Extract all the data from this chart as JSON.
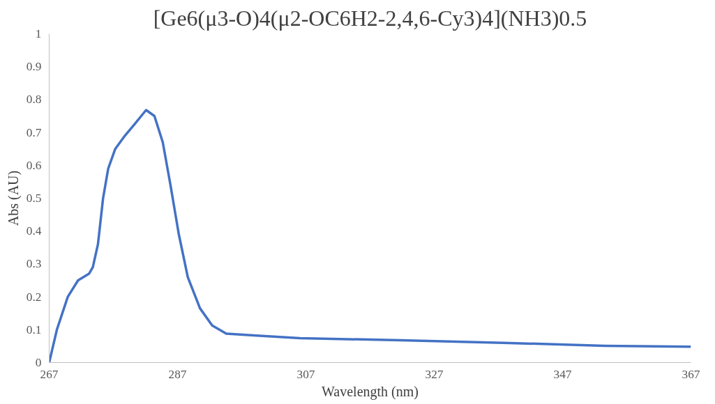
{
  "chart_data": {
    "type": "line",
    "title": "[Ge6(μ3-O)4(μ2-OC6H2-2,4,6-Cy3)4](NH3)0.5",
    "xlabel": "Wavelength (nm)",
    "ylabel": "Abs (AU)",
    "xlim": [
      267,
      367
    ],
    "xticks": [
      267,
      287,
      307,
      327,
      347,
      367
    ],
    "ylim": [
      0,
      1
    ],
    "yticks": [
      0,
      0.1,
      0.2,
      0.3,
      0.4,
      0.5,
      0.6,
      0.7,
      0.8,
      0.9,
      1
    ],
    "grid": false,
    "marker": "none",
    "line_style": "solid",
    "series": [
      {
        "color": "#4472c4",
        "x": [
          267,
          268.2,
          269.9,
          271.5,
          273.2,
          273.8,
          274.6,
          275.4,
          276.2,
          277.3,
          278.8,
          280.3,
          282.1,
          283.4,
          284.7,
          285.9,
          287.2,
          288.6,
          290.5,
          292.4,
          294.6,
          299.3,
          306.1,
          321.9,
          337.8,
          353.6,
          367
        ],
        "values": [
          0,
          0.1,
          0.2,
          0.25,
          0.27,
          0.29,
          0.36,
          0.5,
          0.59,
          0.65,
          0.69,
          0.725,
          0.768,
          0.75,
          0.67,
          0.54,
          0.39,
          0.26,
          0.165,
          0.113,
          0.088,
          0.082,
          0.074,
          0.068,
          0.06,
          0.051,
          0.048
        ]
      }
    ]
  }
}
